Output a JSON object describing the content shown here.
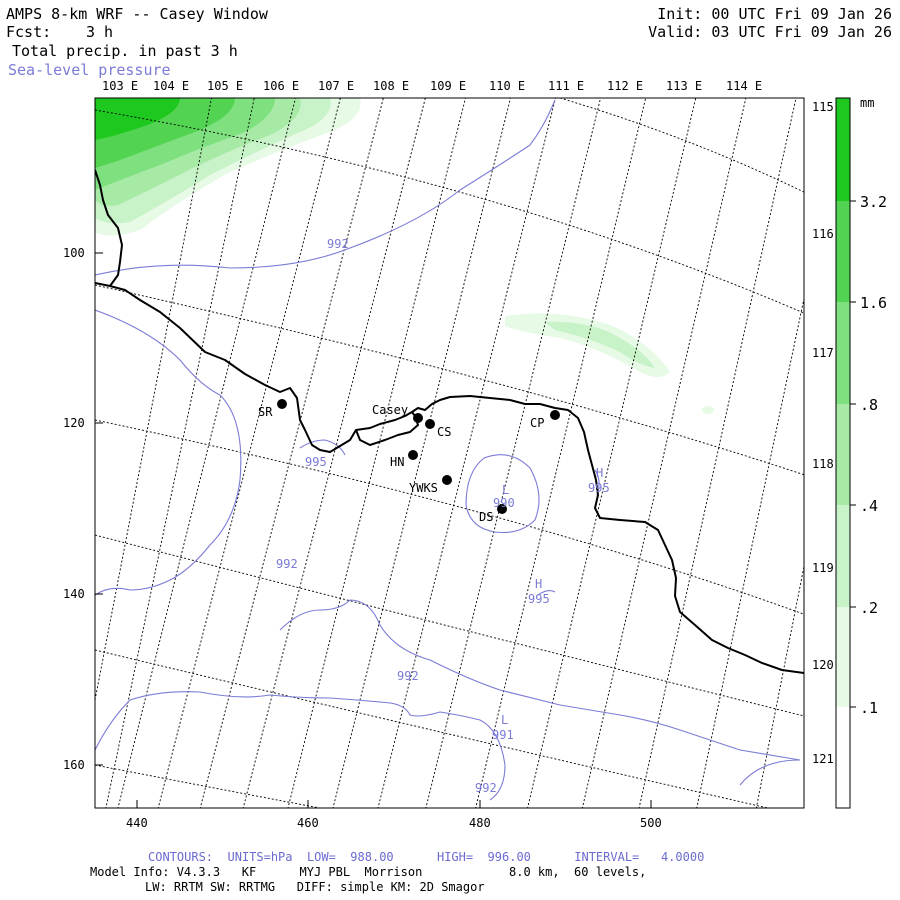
{
  "header": {
    "title": "AMPS 8-km WRF -- Casey Window",
    "forecast_label": "Fcst:",
    "forecast_value": "3 h",
    "field": "Total precip. in past 3 h",
    "overlay": "Sea-level pressure",
    "init": "Init: 00 UTC Fri 09 Jan 26",
    "valid": "Valid: 03 UTC Fri 09 Jan 26"
  },
  "top_lon_labels": [
    "103 E",
    "104 E",
    "105 E",
    "106 E",
    "107 E",
    "108 E",
    "109 E",
    "110 E",
    "111 E",
    "112 E",
    "113 E",
    "114 E"
  ],
  "right_lon_labels": [
    "115 E",
    "116 E",
    "117 E",
    "118 E",
    "119 E",
    "120 E",
    "121 E"
  ],
  "x_ticks": [
    "440",
    "460",
    "480",
    "500"
  ],
  "y_ticks": [
    "100",
    "120",
    "140",
    "160"
  ],
  "colorbar": {
    "unit": "mm",
    "labels": [
      "3.2",
      "1.6",
      ".8",
      ".4",
      ".2",
      ".1"
    ],
    "colors": [
      "#ffffff",
      "#e6fae6",
      "#c8f2c8",
      "#a6eaa6",
      "#7ee07e",
      "#52d452",
      "#1ec81e"
    ]
  },
  "stations": [
    {
      "id": "SR"
    },
    {
      "id": "Casey"
    },
    {
      "id": "CS"
    },
    {
      "id": "HN"
    },
    {
      "id": "YWKS"
    },
    {
      "id": "DS"
    },
    {
      "id": "CP"
    }
  ],
  "pressure_labels": [
    "992",
    "995",
    "992",
    "992",
    "992",
    "990",
    "995",
    "995",
    "991"
  ],
  "pressure_centers": [
    "L",
    "H",
    "H",
    "L"
  ],
  "footer": {
    "contours": "CONTOURS:  UNITS=hPa  LOW=  988.00      HIGH=  996.00      INTERVAL=   4.0000",
    "model_line": "Model Info: V4.3.3   KF      MYJ PBL  Morrison            8.0 km,  60 levels,",
    "physics_line": "LW: RRTM SW: RRTMG   DIFF: simple KM: 2D Smagor"
  },
  "colors": {
    "contour": "#7b7bd6",
    "coast": "#000000",
    "precip_light": "#e6fae6",
    "precip_strong": "#1ec81e"
  }
}
